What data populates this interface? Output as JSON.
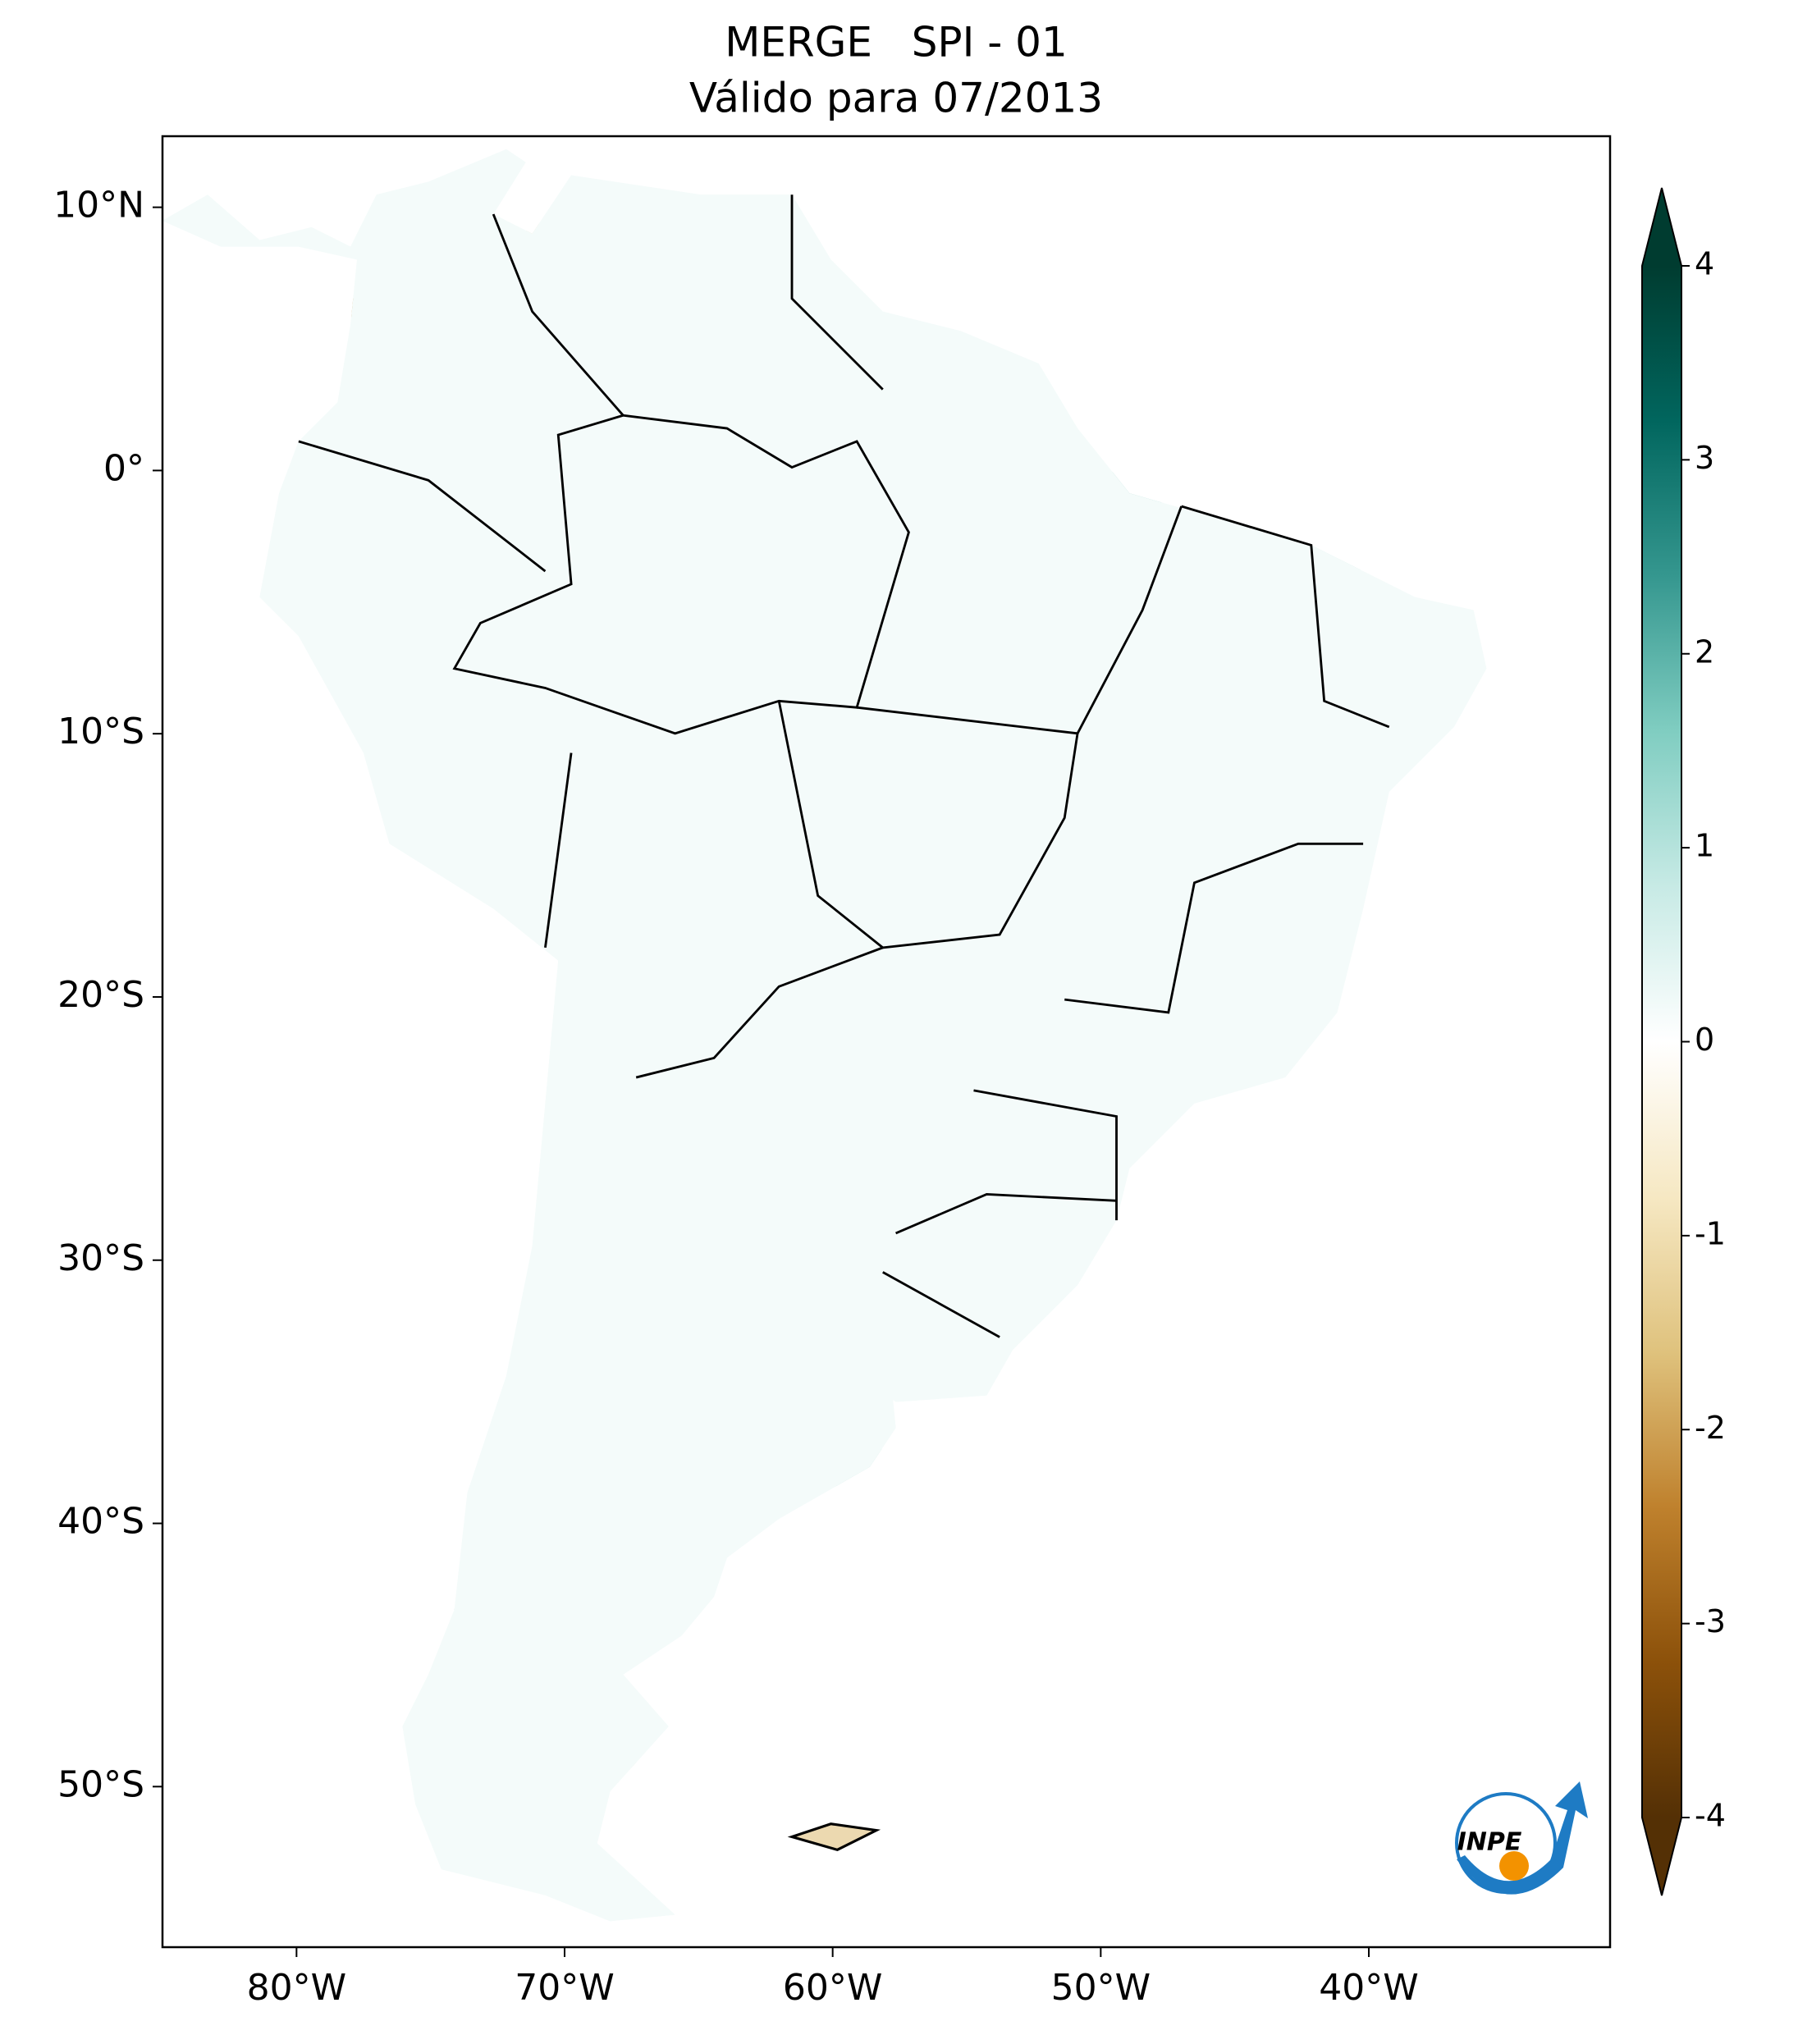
{
  "chart_data": {
    "type": "map",
    "title": [
      "MERGE   SPI - 01",
      "Válido para 07/2013"
    ],
    "xlim": [
      -85,
      -31
    ],
    "ylim": [
      -56.1,
      12.7
    ],
    "xticks": [
      {
        "value": -80,
        "label": "80°W"
      },
      {
        "value": -70,
        "label": "70°W"
      },
      {
        "value": -60,
        "label": "60°W"
      },
      {
        "value": -50,
        "label": "50°W"
      },
      {
        "value": -40,
        "label": "40°W"
      }
    ],
    "yticks": [
      {
        "value": 10,
        "label": "10°N"
      },
      {
        "value": 0,
        "label": "0°"
      },
      {
        "value": -10,
        "label": "10°S"
      },
      {
        "value": -20,
        "label": "20°S"
      },
      {
        "value": -30,
        "label": "30°S"
      },
      {
        "value": -40,
        "label": "40°S"
      },
      {
        "value": -50,
        "label": "50°S"
      }
    ],
    "colorbar": {
      "lim": [
        -4,
        4
      ],
      "ticks": [
        4,
        3,
        2,
        1,
        0,
        -1,
        -2,
        -3,
        -4
      ],
      "colors": [
        "#543005",
        "#8c510a",
        "#bf812d",
        "#dfc27d",
        "#f6e8c3",
        "#ffffff",
        "#c7eae5",
        "#80cdc1",
        "#35978f",
        "#01665e",
        "#003c30"
      ],
      "extend": "both"
    },
    "logo": "INPE"
  }
}
